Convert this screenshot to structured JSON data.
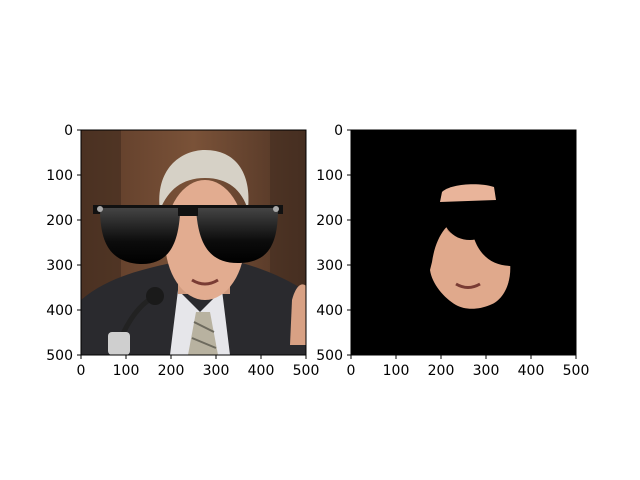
{
  "panels": [
    {
      "name": "original-with-sunglasses",
      "content": "photo of a gray-haired man in a suit and striped tie at a microphone, wearing black sunglasses",
      "x_ticks": [
        "0",
        "100",
        "200",
        "300",
        "400",
        "500"
      ],
      "y_ticks": [
        "0",
        "100",
        "200",
        "300",
        "400",
        "500"
      ],
      "xlim": [
        0,
        500
      ],
      "ylim": [
        500,
        0
      ]
    },
    {
      "name": "masked-face",
      "content": "same face isolated on a black background, sunglasses region blacked out",
      "x_ticks": [
        "0",
        "100",
        "200",
        "300",
        "400",
        "500"
      ],
      "y_ticks": [
        "0",
        "100",
        "200",
        "300",
        "400",
        "500"
      ],
      "xlim": [
        0,
        500
      ],
      "ylim": [
        500,
        0
      ]
    }
  ],
  "colors": {
    "background": "#ffffff",
    "mask": "#000000",
    "skin": "#e8b89c",
    "hair": "#d8d4cc",
    "suit": "#2a2a2e",
    "backdrop": "#6e4a32"
  }
}
